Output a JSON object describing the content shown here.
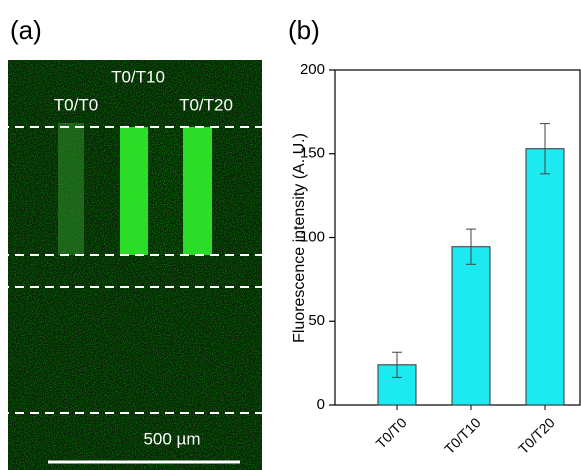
{
  "panel_a": {
    "label": "(a)",
    "labels": [
      "T0/T10",
      "T0/T0",
      "T0/T20"
    ],
    "scale_bar": "500 µm"
  },
  "chart_data": {
    "type": "bar",
    "panel_label": "(b)",
    "ylabel": "Fluorescence intensity (A. U.)",
    "categories": [
      "T0/T0",
      "T0/T10",
      "T0/T20"
    ],
    "values": [
      24,
      94.5,
      153
    ],
    "errors": [
      7.5,
      10.5,
      15
    ],
    "color": "#1de9f0",
    "ylim": [
      0,
      200
    ],
    "yticks": [
      0,
      50,
      100,
      150,
      200
    ]
  }
}
